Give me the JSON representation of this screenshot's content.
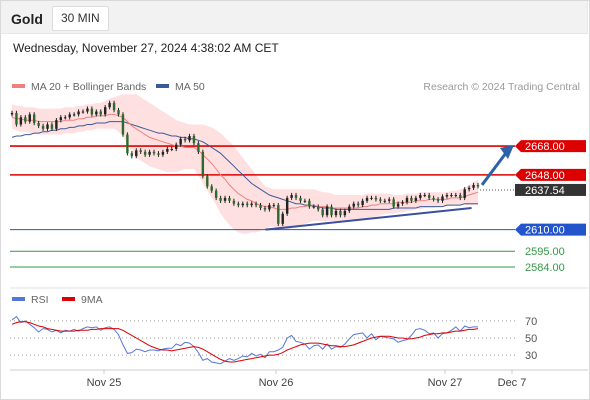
{
  "header": {
    "instrument": "Gold",
    "timeframe": "30 MIN",
    "datetime": "Wednesday, November 27, 2024 4:38:02 AM CET"
  },
  "colors": {
    "bollinger": "#f08080",
    "band_fill": "#ffdada",
    "ma50": "#3c5a9a",
    "candle": "#222222",
    "resistance": "#dd0000",
    "support_blue": "#2255cc",
    "support_green": "#339944",
    "trend_line": "#3a4fa0",
    "arrow": "#2e62a8",
    "rsi": "#5577dd",
    "rsi_ma": "#dd0000",
    "grid_dots": "#999999",
    "current_price_tag": "#333333"
  },
  "chart_data": [
    {
      "type": "candlestick",
      "legend": [
        {
          "label": "MA 20 + Bollinger Bands",
          "color": "#f08080"
        },
        {
          "label": "MA 50",
          "color": "#3c5a9a"
        }
      ],
      "source_text": "Research © 2024 Trading Central",
      "x_ticks": [
        "Nov 25",
        "Nov 26",
        "Nov 27",
        "Dec 7"
      ],
      "y_range": [
        2575,
        2700
      ],
      "levels": [
        {
          "value": 2668.0,
          "label": "2668.00",
          "kind": "resistance",
          "color": "#dd0000"
        },
        {
          "value": 2648.0,
          "label": "2648.00",
          "kind": "resistance",
          "color": "#dd0000"
        },
        {
          "value": 2610.0,
          "label": "2610.00",
          "kind": "support",
          "color": "#2255cc"
        },
        {
          "value": 2595.0,
          "label": "2595.00",
          "kind": "support",
          "color": "#339944"
        },
        {
          "value": 2584.0,
          "label": "2584.00",
          "kind": "support",
          "color": "#339944"
        }
      ],
      "current_price": {
        "value": 2637.54,
        "label": "2637.54"
      },
      "close": [
        2691,
        2683,
        2688,
        2685,
        2690,
        2684,
        2682,
        2680,
        2683,
        2680,
        2686,
        2688,
        2688,
        2690,
        2690,
        2692,
        2692,
        2694,
        2690,
        2692,
        2690,
        2695,
        2698,
        2693,
        2690,
        2676,
        2663,
        2661,
        2665,
        2664,
        2662,
        2664,
        2663,
        2662,
        2664,
        2666,
        2666,
        2669,
        2673,
        2672,
        2675,
        2670,
        2664,
        2647,
        2640,
        2637,
        2632,
        2630,
        2632,
        2630,
        2628,
        2627,
        2628,
        2627,
        2628,
        2627,
        2625,
        2624,
        2627,
        2627,
        2614,
        2621,
        2632,
        2634,
        2632,
        2630,
        2630,
        2626,
        2626,
        2624,
        2620,
        2626,
        2620,
        2623,
        2620,
        2623,
        2626,
        2628,
        2627,
        2630,
        2632,
        2632,
        2631,
        2630,
        2630,
        2631,
        2626,
        2628,
        2629,
        2632,
        2630,
        2632,
        2634,
        2634,
        2632,
        2631,
        2630,
        2633,
        2634,
        2634,
        2634,
        2632,
        2638,
        2639,
        2641,
        2640
      ],
      "high_offset": 1.5,
      "low_offset": 1.5,
      "ma20": [
        2688,
        2687,
        2687,
        2686,
        2686,
        2686,
        2685,
        2685,
        2685,
        2685,
        2685,
        2685,
        2686,
        2686,
        2686,
        2687,
        2687,
        2688,
        2688,
        2689,
        2689,
        2689,
        2690,
        2690,
        2689,
        2688,
        2685,
        2682,
        2680,
        2678,
        2676,
        2674,
        2673,
        2672,
        2671,
        2670,
        2669,
        2668,
        2668,
        2667,
        2667,
        2667,
        2665,
        2662,
        2659,
        2656,
        2652,
        2648,
        2645,
        2641,
        2638,
        2635,
        2633,
        2631,
        2630,
        2628,
        2627,
        2626,
        2626,
        2625,
        2624,
        2624,
        2624,
        2625,
        2625,
        2626,
        2626,
        2627,
        2627,
        2626,
        2626,
        2626,
        2625,
        2625,
        2625,
        2625,
        2625,
        2625,
        2625,
        2626,
        2626,
        2627,
        2627,
        2628,
        2628,
        2628,
        2628,
        2629,
        2629,
        2629,
        2629,
        2630,
        2630,
        2630,
        2631,
        2631,
        2631,
        2631,
        2631,
        2632,
        2632,
        2632,
        2633,
        2634,
        2635,
        2636
      ],
      "bollinger_upper": [
        2697,
        2696,
        2696,
        2695,
        2695,
        2695,
        2694,
        2694,
        2694,
        2694,
        2694,
        2694,
        2695,
        2695,
        2695,
        2696,
        2696,
        2697,
        2697,
        2698,
        2698,
        2699,
        2701,
        2702,
        2703,
        2704,
        2704,
        2704,
        2704,
        2702,
        2700,
        2698,
        2696,
        2694,
        2692,
        2690,
        2688,
        2686,
        2685,
        2684,
        2683,
        2683,
        2683,
        2683,
        2682,
        2681,
        2679,
        2677,
        2674,
        2671,
        2668,
        2664,
        2660,
        2656,
        2652,
        2648,
        2644,
        2640,
        2639,
        2638,
        2638,
        2638,
        2638,
        2638,
        2638,
        2638,
        2638,
        2638,
        2638,
        2637,
        2636,
        2636,
        2635,
        2634,
        2634,
        2634,
        2634,
        2634,
        2634,
        2634,
        2635,
        2635,
        2635,
        2635,
        2635,
        2635,
        2634,
        2634,
        2634,
        2635,
        2635,
        2635,
        2636,
        2636,
        2636,
        2636,
        2636,
        2636,
        2636,
        2637,
        2637,
        2638,
        2639,
        2641,
        2643,
        2645
      ],
      "bollinger_lower": [
        2680,
        2679,
        2678,
        2678,
        2677,
        2677,
        2676,
        2676,
        2676,
        2676,
        2676,
        2676,
        2677,
        2677,
        2677,
        2678,
        2678,
        2679,
        2679,
        2680,
        2680,
        2680,
        2680,
        2680,
        2678,
        2675,
        2669,
        2664,
        2660,
        2658,
        2656,
        2654,
        2653,
        2652,
        2651,
        2650,
        2650,
        2650,
        2651,
        2652,
        2652,
        2652,
        2648,
        2642,
        2637,
        2632,
        2627,
        2621,
        2617,
        2613,
        2610,
        2608,
        2607,
        2607,
        2608,
        2608,
        2609,
        2610,
        2612,
        2612,
        2611,
        2610,
        2610,
        2611,
        2612,
        2613,
        2614,
        2615,
        2616,
        2616,
        2616,
        2616,
        2616,
        2616,
        2616,
        2616,
        2617,
        2617,
        2617,
        2617,
        2618,
        2618,
        2619,
        2620,
        2621,
        2621,
        2621,
        2622,
        2622,
        2623,
        2623,
        2624,
        2624,
        2625,
        2625,
        2625,
        2626,
        2626,
        2626,
        2627,
        2627,
        2627,
        2627,
        2627,
        2627,
        2627
      ],
      "ma50": [
        2674,
        2675,
        2675,
        2676,
        2676,
        2677,
        2677,
        2678,
        2678,
        2679,
        2679,
        2680,
        2680,
        2681,
        2681,
        2682,
        2682,
        2683,
        2683,
        2684,
        2684,
        2684,
        2685,
        2685,
        2685,
        2685,
        2684,
        2683,
        2682,
        2681,
        2680,
        2679,
        2678,
        2677,
        2677,
        2676,
        2675,
        2675,
        2674,
        2674,
        2673,
        2673,
        2672,
        2671,
        2669,
        2667,
        2665,
        2663,
        2660,
        2657,
        2654,
        2651,
        2648,
        2645,
        2642,
        2640,
        2638,
        2636,
        2634,
        2633,
        2632,
        2631,
        2630,
        2629,
        2628,
        2628,
        2627,
        2627,
        2626,
        2626,
        2625,
        2625,
        2625,
        2624,
        2624,
        2624,
        2624,
        2624,
        2624,
        2624,
        2624,
        2624,
        2624,
        2624,
        2624,
        2624,
        2625,
        2625,
        2625,
        2625,
        2625,
        2625,
        2626,
        2626,
        2626,
        2626,
        2626,
        2626,
        2627,
        2627,
        2627,
        2627,
        2628,
        2628,
        2628,
        2628
      ],
      "trend_line": {
        "from_index": 58,
        "from_value": 2610,
        "to_index": 104,
        "to_value": 2625
      }
    },
    {
      "type": "line",
      "name": "RSI panel",
      "legend": [
        {
          "label": "RSI",
          "color": "#5577dd"
        },
        {
          "label": "9MA",
          "color": "#dd0000"
        }
      ],
      "y_ticks": [
        70,
        50,
        30
      ],
      "y_range": [
        15,
        85
      ],
      "series": [
        {
          "name": "RSI",
          "values": [
            71,
            75,
            68,
            70,
            66,
            62,
            57,
            61,
            60,
            57,
            59,
            56,
            59,
            58,
            60,
            58,
            61,
            63,
            62,
            63,
            59,
            62,
            63,
            60,
            54,
            42,
            32,
            33,
            37,
            36,
            34,
            36,
            36,
            35,
            37,
            38,
            38,
            43,
            41,
            45,
            44,
            40,
            33,
            24,
            26,
            22,
            21,
            20,
            23,
            26,
            24,
            26,
            29,
            28,
            32,
            29,
            31,
            27,
            34,
            34,
            36,
            39,
            50,
            53,
            46,
            45,
            43,
            37,
            41,
            42,
            37,
            43,
            37,
            40,
            39,
            43,
            49,
            54,
            55,
            56,
            50,
            55,
            48,
            52,
            51,
            50,
            49,
            45,
            47,
            48,
            53,
            60,
            61,
            59,
            55,
            56,
            50,
            55,
            56,
            59,
            63,
            58,
            64,
            62,
            63,
            63
          ]
        },
        {
          "name": "9MA",
          "values": [
            66,
            68,
            69,
            69,
            68,
            66,
            64,
            63,
            61,
            60,
            59,
            58,
            58,
            58,
            58,
            59,
            59,
            59,
            60,
            60,
            61,
            61,
            61,
            61,
            61,
            59,
            56,
            53,
            50,
            47,
            44,
            41,
            39,
            37,
            36,
            36,
            35,
            36,
            37,
            38,
            39,
            40,
            39,
            37,
            34,
            31,
            28,
            25,
            23,
            22,
            22,
            23,
            24,
            25,
            26,
            27,
            28,
            29,
            30,
            30,
            31,
            33,
            36,
            38,
            40,
            42,
            43,
            44,
            44,
            44,
            43,
            42,
            41,
            41,
            40,
            40,
            41,
            42,
            44,
            46,
            48,
            50,
            51,
            52,
            52,
            52,
            51,
            50,
            50,
            49,
            49,
            50,
            51,
            53,
            54,
            55,
            55,
            56,
            56,
            57,
            58,
            58,
            59,
            60,
            60,
            61
          ]
        }
      ]
    }
  ]
}
